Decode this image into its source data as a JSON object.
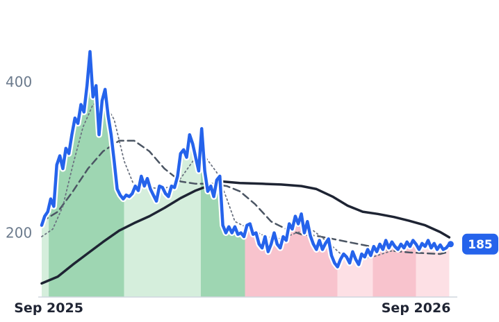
{
  "chart_data": {
    "type": "line",
    "title": "",
    "xlabel": "",
    "ylabel": "",
    "x_start": "2025-08-25",
    "x_end": "2026-10-12",
    "x_ticks": [
      {
        "date": "2025-09-01",
        "label": "Sep 2025"
      },
      {
        "date": "2026-09-01",
        "label": "Sep 2026"
      }
    ],
    "y_ticks": [
      200,
      400
    ],
    "ylim": [
      115,
      490
    ],
    "grid": false,
    "legend": "none",
    "last_value_badge": "185",
    "colors": {
      "price": "#2563eb",
      "ma_long": "#1e2433",
      "ma_mid": "#4b5563",
      "ma_short": "#6b7280",
      "up_strong": "#9ed6b2",
      "up_light": "#d5eedc",
      "down_strong": "#f8c3cd",
      "down_light": "#fde0e5",
      "badge": "#2563eb"
    },
    "bands": [
      {
        "start": "2025-08-25",
        "end": "2025-09-01",
        "trend": "up",
        "strength": "light"
      },
      {
        "start": "2025-09-01",
        "end": "2025-11-15",
        "trend": "up",
        "strength": "strong"
      },
      {
        "start": "2025-11-15",
        "end": "2026-01-30",
        "trend": "up",
        "strength": "light"
      },
      {
        "start": "2026-01-30",
        "end": "2026-03-15",
        "trend": "up",
        "strength": "strong"
      },
      {
        "start": "2026-03-15",
        "end": "2026-06-15",
        "trend": "down",
        "strength": "strong"
      },
      {
        "start": "2026-06-15",
        "end": "2026-07-20",
        "trend": "down",
        "strength": "light"
      },
      {
        "start": "2026-07-20",
        "end": "2026-09-01",
        "trend": "down",
        "strength": "strong"
      },
      {
        "start": "2026-09-01",
        "end": "2026-10-05",
        "trend": "down",
        "strength": "light"
      }
    ],
    "series": [
      {
        "key": "price",
        "style": "thick",
        "points": [
          [
            "2025-08-25",
            210
          ],
          [
            "2025-08-28",
            222
          ],
          [
            "2025-08-31",
            228
          ],
          [
            "2025-09-03",
            245
          ],
          [
            "2025-09-06",
            235
          ],
          [
            "2025-09-09",
            290
          ],
          [
            "2025-09-12",
            302
          ],
          [
            "2025-09-15",
            285
          ],
          [
            "2025-09-18",
            312
          ],
          [
            "2025-09-21",
            305
          ],
          [
            "2025-09-24",
            330
          ],
          [
            "2025-09-27",
            352
          ],
          [
            "2025-09-30",
            345
          ],
          [
            "2025-10-03",
            370
          ],
          [
            "2025-10-06",
            360
          ],
          [
            "2025-10-09",
            395
          ],
          [
            "2025-10-12",
            440
          ],
          [
            "2025-10-15",
            380
          ],
          [
            "2025-10-18",
            395
          ],
          [
            "2025-10-21",
            330
          ],
          [
            "2025-10-24",
            375
          ],
          [
            "2025-10-27",
            390
          ],
          [
            "2025-10-30",
            355
          ],
          [
            "2025-11-02",
            330
          ],
          [
            "2025-11-05",
            295
          ],
          [
            "2025-11-08",
            258
          ],
          [
            "2025-11-11",
            250
          ],
          [
            "2025-11-14",
            245
          ],
          [
            "2025-11-17",
            250
          ],
          [
            "2025-11-20",
            248
          ],
          [
            "2025-11-23",
            252
          ],
          [
            "2025-11-26",
            262
          ],
          [
            "2025-11-29",
            256
          ],
          [
            "2025-12-02",
            275
          ],
          [
            "2025-12-05",
            262
          ],
          [
            "2025-12-08",
            272
          ],
          [
            "2025-12-11",
            258
          ],
          [
            "2025-12-14",
            250
          ],
          [
            "2025-12-17",
            242
          ],
          [
            "2025-12-20",
            262
          ],
          [
            "2025-12-23",
            260
          ],
          [
            "2025-12-26",
            252
          ],
          [
            "2025-12-29",
            248
          ],
          [
            "2026-01-01",
            262
          ],
          [
            "2026-01-04",
            260
          ],
          [
            "2026-01-07",
            275
          ],
          [
            "2026-01-10",
            305
          ],
          [
            "2026-01-13",
            310
          ],
          [
            "2026-01-16",
            300
          ],
          [
            "2026-01-19",
            330
          ],
          [
            "2026-01-22",
            318
          ],
          [
            "2026-01-25",
            300
          ],
          [
            "2026-01-28",
            282
          ],
          [
            "2026-01-31",
            338
          ],
          [
            "2026-02-03",
            282
          ],
          [
            "2026-02-06",
            255
          ],
          [
            "2026-02-09",
            262
          ],
          [
            "2026-02-12",
            248
          ],
          [
            "2026-02-15",
            270
          ],
          [
            "2026-02-18",
            275
          ],
          [
            "2026-02-21",
            210
          ],
          [
            "2026-02-24",
            200
          ],
          [
            "2026-02-27",
            208
          ],
          [
            "2026-03-02",
            200
          ],
          [
            "2026-03-05",
            208
          ],
          [
            "2026-03-08",
            198
          ],
          [
            "2026-03-11",
            200
          ],
          [
            "2026-03-14",
            195
          ],
          [
            "2026-03-17",
            210
          ],
          [
            "2026-03-20",
            212
          ],
          [
            "2026-03-23",
            198
          ],
          [
            "2026-03-26",
            200
          ],
          [
            "2026-03-29",
            185
          ],
          [
            "2026-04-01",
            180
          ],
          [
            "2026-04-04",
            195
          ],
          [
            "2026-04-07",
            175
          ],
          [
            "2026-04-10",
            185
          ],
          [
            "2026-04-13",
            200
          ],
          [
            "2026-04-16",
            185
          ],
          [
            "2026-04-19",
            180
          ],
          [
            "2026-04-22",
            195
          ],
          [
            "2026-04-25",
            190
          ],
          [
            "2026-04-28",
            212
          ],
          [
            "2026-05-01",
            205
          ],
          [
            "2026-05-04",
            222
          ],
          [
            "2026-05-07",
            212
          ],
          [
            "2026-05-10",
            225
          ],
          [
            "2026-05-13",
            200
          ],
          [
            "2026-05-16",
            215
          ],
          [
            "2026-05-19",
            196
          ],
          [
            "2026-05-22",
            185
          ],
          [
            "2026-05-25",
            178
          ],
          [
            "2026-05-28",
            190
          ],
          [
            "2026-05-31",
            178
          ],
          [
            "2026-06-03",
            186
          ],
          [
            "2026-06-06",
            192
          ],
          [
            "2026-06-09",
            170
          ],
          [
            "2026-06-12",
            160
          ],
          [
            "2026-06-15",
            155
          ],
          [
            "2026-06-18",
            165
          ],
          [
            "2026-06-21",
            172
          ],
          [
            "2026-06-24",
            168
          ],
          [
            "2026-06-27",
            160
          ],
          [
            "2026-06-30",
            175
          ],
          [
            "2026-07-03",
            165
          ],
          [
            "2026-07-06",
            158
          ],
          [
            "2026-07-09",
            172
          ],
          [
            "2026-07-12",
            168
          ],
          [
            "2026-07-15",
            178
          ],
          [
            "2026-07-18",
            170
          ],
          [
            "2026-07-21",
            182
          ],
          [
            "2026-07-24",
            175
          ],
          [
            "2026-07-27",
            185
          ],
          [
            "2026-07-30",
            178
          ],
          [
            "2026-08-02",
            190
          ],
          [
            "2026-08-05",
            180
          ],
          [
            "2026-08-08",
            188
          ],
          [
            "2026-08-11",
            182
          ],
          [
            "2026-08-14",
            178
          ],
          [
            "2026-08-17",
            185
          ],
          [
            "2026-08-20",
            180
          ],
          [
            "2026-08-23",
            188
          ],
          [
            "2026-08-26",
            182
          ],
          [
            "2026-08-29",
            190
          ],
          [
            "2026-09-01",
            185
          ],
          [
            "2026-09-04",
            178
          ],
          [
            "2026-09-07",
            186
          ],
          [
            "2026-09-10",
            182
          ],
          [
            "2026-09-13",
            190
          ],
          [
            "2026-09-16",
            180
          ],
          [
            "2026-09-19",
            186
          ],
          [
            "2026-09-22",
            178
          ],
          [
            "2026-09-25",
            184
          ],
          [
            "2026-09-28",
            178
          ],
          [
            "2026-10-01",
            180
          ],
          [
            "2026-10-04",
            185
          ]
        ]
      },
      {
        "key": "ma_long",
        "style": "solid",
        "points": [
          [
            "2025-08-25",
            133
          ],
          [
            "2025-09-10",
            142
          ],
          [
            "2025-09-25",
            158
          ],
          [
            "2025-10-10",
            173
          ],
          [
            "2025-10-25",
            188
          ],
          [
            "2025-11-10",
            203
          ],
          [
            "2025-11-25",
            213
          ],
          [
            "2025-12-10",
            222
          ],
          [
            "2025-12-25",
            233
          ],
          [
            "2026-01-10",
            246
          ],
          [
            "2026-01-25",
            256
          ],
          [
            "2026-02-10",
            264
          ],
          [
            "2026-02-20",
            268
          ],
          [
            "2026-03-10",
            266
          ],
          [
            "2026-04-01",
            265
          ],
          [
            "2026-04-20",
            264
          ],
          [
            "2026-05-10",
            262
          ],
          [
            "2026-05-25",
            258
          ],
          [
            "2026-06-10",
            248
          ],
          [
            "2026-06-25",
            236
          ],
          [
            "2026-07-10",
            228
          ],
          [
            "2026-07-25",
            225
          ],
          [
            "2026-08-10",
            221
          ],
          [
            "2026-08-25",
            216
          ],
          [
            "2026-09-10",
            210
          ],
          [
            "2026-09-25",
            201
          ],
          [
            "2026-10-04",
            194
          ]
        ]
      },
      {
        "key": "ma_mid",
        "style": "dashed",
        "points": [
          [
            "2025-08-25",
            215
          ],
          [
            "2025-09-10",
            228
          ],
          [
            "2025-09-25",
            255
          ],
          [
            "2025-10-10",
            285
          ],
          [
            "2025-10-25",
            308
          ],
          [
            "2025-11-10",
            322
          ],
          [
            "2025-11-25",
            322
          ],
          [
            "2025-12-10",
            308
          ],
          [
            "2025-12-25",
            285
          ],
          [
            "2026-01-10",
            268
          ],
          [
            "2026-01-25",
            265
          ],
          [
            "2026-02-10",
            265
          ],
          [
            "2026-02-25",
            262
          ],
          [
            "2026-03-10",
            255
          ],
          [
            "2026-03-25",
            238
          ],
          [
            "2026-04-10",
            215
          ],
          [
            "2026-04-25",
            205
          ],
          [
            "2026-05-10",
            198
          ],
          [
            "2026-05-25",
            196
          ],
          [
            "2026-06-10",
            192
          ],
          [
            "2026-06-25",
            188
          ],
          [
            "2026-07-10",
            184
          ],
          [
            "2026-07-25",
            180
          ],
          [
            "2026-08-10",
            176
          ],
          [
            "2026-08-25",
            174
          ],
          [
            "2026-09-10",
            173
          ],
          [
            "2026-09-25",
            172
          ],
          [
            "2026-10-04",
            175
          ]
        ]
      },
      {
        "key": "ma_short",
        "style": "dotted",
        "points": [
          [
            "2025-08-25",
            195
          ],
          [
            "2025-09-05",
            205
          ],
          [
            "2025-09-15",
            235
          ],
          [
            "2025-09-25",
            290
          ],
          [
            "2025-10-05",
            340
          ],
          [
            "2025-10-15",
            370
          ],
          [
            "2025-10-25",
            375
          ],
          [
            "2025-11-05",
            350
          ],
          [
            "2025-11-15",
            295
          ],
          [
            "2025-11-25",
            262
          ],
          [
            "2025-12-10",
            260
          ],
          [
            "2025-12-25",
            258
          ],
          [
            "2026-01-10",
            272
          ],
          [
            "2026-01-25",
            300
          ],
          [
            "2026-02-05",
            298
          ],
          [
            "2026-02-15",
            280
          ],
          [
            "2026-02-25",
            245
          ],
          [
            "2026-03-05",
            215
          ],
          [
            "2026-03-20",
            205
          ],
          [
            "2026-04-05",
            195
          ],
          [
            "2026-04-20",
            192
          ],
          [
            "2026-05-05",
            200
          ],
          [
            "2026-05-20",
            205
          ],
          [
            "2026-06-05",
            188
          ],
          [
            "2026-06-20",
            170
          ],
          [
            "2026-07-05",
            165
          ],
          [
            "2026-07-20",
            168
          ],
          [
            "2026-08-05",
            175
          ],
          [
            "2026-08-20",
            180
          ],
          [
            "2026-09-05",
            184
          ],
          [
            "2026-09-20",
            184
          ],
          [
            "2026-10-04",
            182
          ]
        ]
      }
    ]
  }
}
